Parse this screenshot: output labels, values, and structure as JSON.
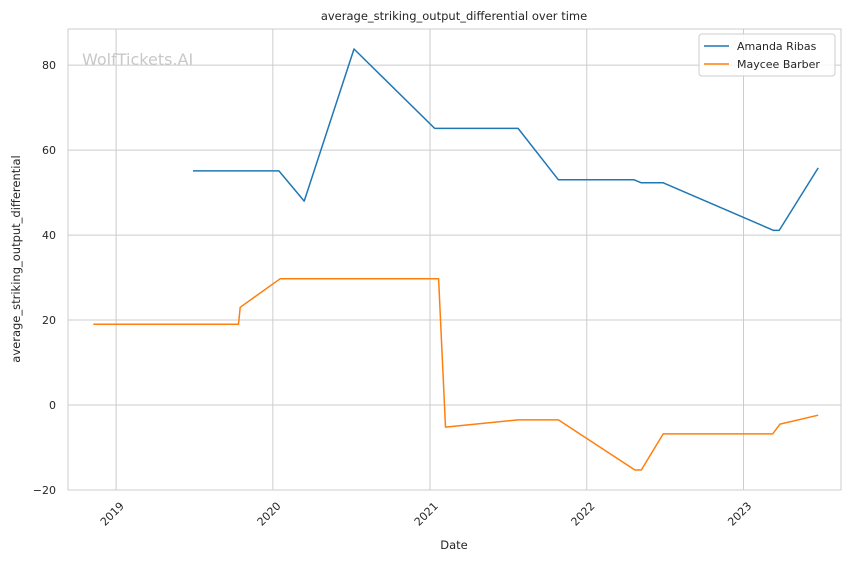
{
  "chart_data": {
    "type": "line",
    "title": "average_striking_output_differential over time",
    "xlabel": "Date",
    "ylabel": "average_striking_output_differential",
    "watermark": "WolfTickets.AI",
    "x_ticks": [
      "2019",
      "2020",
      "2021",
      "2022",
      "2023"
    ],
    "y_ticks": [
      -20,
      0,
      20,
      40,
      60,
      80
    ],
    "xlim": [
      "2018-09-11",
      "2023-08-16"
    ],
    "ylim": [
      -20,
      88.5
    ],
    "grid": true,
    "legend_position": "top-right",
    "series": [
      {
        "name": "Amanda Ribas",
        "color": "#1f77b4",
        "points": [
          [
            "2019-06-29",
            55.1
          ],
          [
            "2020-01-15",
            55.1
          ],
          [
            "2020-03-14",
            48.0
          ],
          [
            "2020-07-08",
            83.8
          ],
          [
            "2021-01-12",
            65.1
          ],
          [
            "2021-07-25",
            65.1
          ],
          [
            "2021-10-27",
            53.0
          ],
          [
            "2022-04-21",
            53.0
          ],
          [
            "2022-05-08",
            52.3
          ],
          [
            "2022-06-28",
            52.3
          ],
          [
            "2023-03-12",
            41.1
          ],
          [
            "2023-03-25",
            41.1
          ],
          [
            "2023-06-24",
            55.8
          ]
        ]
      },
      {
        "name": "Maycee Barber",
        "color": "#ff7f0e",
        "points": [
          [
            "2018-11-09",
            19.0
          ],
          [
            "2019-10-13",
            19.0
          ],
          [
            "2019-10-17",
            23.0
          ],
          [
            "2020-01-18",
            29.7
          ],
          [
            "2021-01-21",
            29.7
          ],
          [
            "2021-02-06",
            -5.2
          ],
          [
            "2021-07-25",
            -3.5
          ],
          [
            "2021-10-27",
            -3.5
          ],
          [
            "2022-04-23",
            -15.3
          ],
          [
            "2022-05-08",
            -15.3
          ],
          [
            "2022-06-28",
            -6.8
          ],
          [
            "2023-03-10",
            -6.8
          ],
          [
            "2023-03-27",
            -4.5
          ],
          [
            "2023-06-24",
            -2.4
          ]
        ]
      }
    ]
  }
}
